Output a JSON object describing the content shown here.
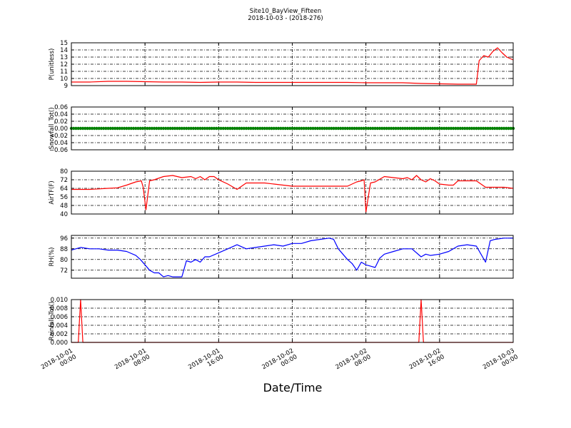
{
  "figure": {
    "title": "Site10_BayView_Fifteen",
    "subtitle": "2018-10-03 - (2018-276)",
    "xlabel": "Date/Time"
  },
  "chart_data": [
    {
      "type": "line",
      "ylabel": "P(unitless)",
      "ylim": [
        9,
        15
      ],
      "yticks": [
        "9",
        "10",
        "11",
        "12",
        "13",
        "14",
        "15"
      ],
      "xlim": [
        "2018-10-01 00:00",
        "2018-10-03 00:00"
      ],
      "xticks": [
        "2018-10-01\n00:00",
        "2018-10-01\n08:00",
        "2018-10-01\n16:00",
        "2018-10-02\n00:00",
        "2018-10-02\n08:00",
        "2018-10-02\n16:00",
        "2018-10-03\n00:00"
      ],
      "grid": true,
      "series": [
        {
          "color": "#ff0000",
          "x": [
            0,
            2,
            4,
            6,
            8,
            10,
            12,
            14,
            16,
            18,
            20,
            22,
            24,
            26,
            28,
            30,
            32,
            34,
            36,
            38,
            40,
            42,
            44,
            44.3,
            44.8,
            45.3,
            45.8,
            46.3,
            46.8,
            47.3,
            48
          ],
          "y": [
            9.5,
            9.5,
            9.6,
            9.6,
            9.55,
            9.5,
            9.5,
            9.45,
            9.5,
            9.5,
            9.45,
            9.45,
            9.45,
            9.45,
            9.45,
            9.45,
            9.4,
            9.4,
            9.4,
            9.3,
            9.25,
            9.2,
            9.2,
            12.5,
            13.2,
            13.0,
            13.8,
            14.3,
            13.6,
            13.0,
            12.6
          ]
        }
      ]
    },
    {
      "type": "scatter",
      "ylabel": "Snowfall_Tot()",
      "ylim": [
        -0.06,
        0.06
      ],
      "yticks": [
        "−0.06",
        "−0.04",
        "−0.02",
        "0.00",
        "0.02",
        "0.04",
        "0.06"
      ],
      "xlim": [
        "2018-10-01 00:00",
        "2018-10-03 00:00"
      ],
      "grid": true,
      "series": [
        {
          "color": "#008000",
          "x_range": [
            0,
            48
          ],
          "value": 0.0
        }
      ]
    },
    {
      "type": "line",
      "ylabel": "AirTF(F)",
      "ylim": [
        40,
        80
      ],
      "yticks": [
        "40",
        "48",
        "56",
        "64",
        "72",
        "80"
      ],
      "xlim": [
        "2018-10-01 00:00",
        "2018-10-03 00:00"
      ],
      "grid": true,
      "series": [
        {
          "color": "#ff0000",
          "x": [
            0,
            1,
            2,
            3,
            4,
            5,
            6,
            7,
            7.6,
            7.8,
            8.1,
            8.5,
            9,
            10,
            11,
            12,
            13,
            13.5,
            14,
            14.5,
            15,
            15.5,
            16,
            17,
            18,
            19,
            20,
            21,
            22,
            23,
            24,
            26,
            28,
            30,
            30.5,
            31,
            31.5,
            31.8,
            32,
            32.5,
            33,
            34,
            35,
            36,
            36.5,
            37,
            37.5,
            38,
            38.5,
            39,
            39.5,
            40,
            41,
            41.5,
            42,
            43,
            44,
            45,
            46,
            47,
            48
          ],
          "y": [
            63,
            63,
            63,
            63.5,
            64,
            64.5,
            67,
            70,
            71,
            65,
            44,
            71,
            72,
            75,
            76,
            74,
            75,
            73,
            75,
            72,
            75,
            75,
            72,
            68,
            63,
            69,
            69,
            69,
            68,
            67,
            66,
            66,
            66,
            66,
            68,
            70,
            71,
            72,
            42,
            69,
            70,
            75,
            74,
            73,
            74,
            72,
            76,
            72,
            70,
            73,
            71,
            68,
            67,
            67,
            71,
            71,
            71,
            65,
            65,
            65,
            64
          ]
        }
      ]
    },
    {
      "type": "line",
      "ylabel": "RH(%)",
      "ylim": [
        66,
        98
      ],
      "yticks": [
        "72",
        "80",
        "88",
        "96"
      ],
      "xlim": [
        "2018-10-01 00:00",
        "2018-10-03 00:00"
      ],
      "grid": true,
      "series": [
        {
          "color": "#0000ff",
          "x": [
            0,
            1,
            2,
            3,
            4,
            5,
            6,
            7,
            7.5,
            8,
            8.5,
            9,
            9.5,
            10,
            10.5,
            11,
            11.5,
            12,
            12.5,
            13,
            13.5,
            14,
            14.5,
            15,
            16,
            17,
            18,
            19,
            20,
            21,
            22,
            23,
            24,
            25,
            26,
            27,
            28,
            28.5,
            29,
            29.5,
            30,
            30.5,
            31,
            31.5,
            32,
            32.5,
            33,
            33.5,
            34,
            35,
            36,
            37,
            38,
            38.5,
            39,
            40,
            41,
            42,
            43,
            44,
            44.5,
            45,
            45.5,
            46,
            47,
            48
          ],
          "y": [
            87,
            89,
            88,
            88,
            87,
            87,
            86,
            83,
            80,
            76,
            72,
            70,
            70,
            67,
            68,
            67,
            67,
            67,
            79,
            78,
            80,
            78,
            82,
            82,
            85,
            88,
            91,
            88,
            89,
            90,
            91,
            90,
            92,
            92,
            94,
            95,
            96,
            95,
            88,
            84,
            80,
            77,
            72,
            78,
            76,
            75,
            74,
            81,
            84,
            86,
            88,
            88,
            82,
            84,
            83,
            84,
            86,
            90,
            91,
            90,
            84,
            78,
            94,
            95,
            96,
            96
          ]
        }
      ]
    },
    {
      "type": "line",
      "ylabel": "Rainfall_Tot()",
      "ylim": [
        0,
        0.01
      ],
      "yticks": [
        "0.000",
        "0.002",
        "0.004",
        "0.006",
        "0.008",
        "0.010"
      ],
      "xlim": [
        "2018-10-01 00:00",
        "2018-10-03 00:00"
      ],
      "grid": true,
      "series": [
        {
          "color": "#ff0000",
          "x": [
            0,
            0.75,
            1.0,
            1.25,
            37.75,
            38.0,
            38.25,
            48
          ],
          "y": [
            0,
            0,
            0.01,
            0,
            0,
            0.01,
            0,
            0
          ]
        }
      ]
    }
  ]
}
